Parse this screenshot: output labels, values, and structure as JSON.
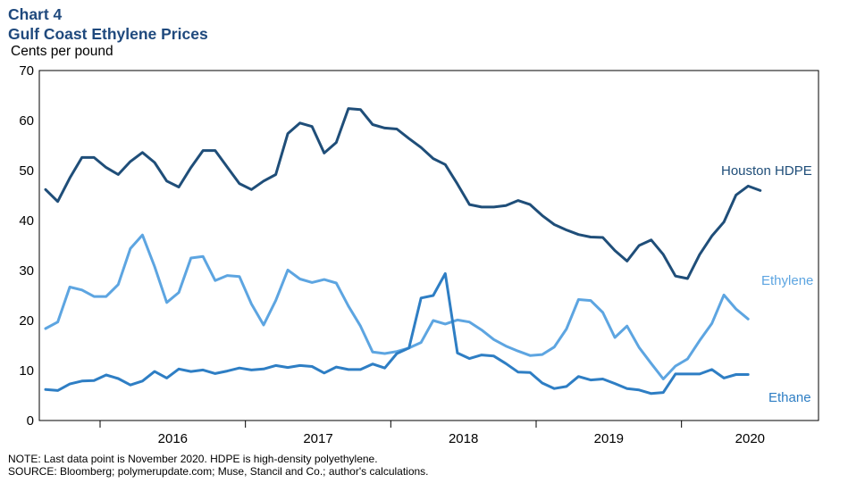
{
  "chart_data": {
    "type": "line",
    "chart_label": "Chart 4",
    "title": "Gulf Coast Ethylene Prices",
    "ylabel": "Cents per pound",
    "xlabel": "",
    "ylim": [
      0,
      70
    ],
    "yticks": [
      "0",
      "10",
      "20",
      "30",
      "40",
      "50",
      "60",
      "70"
    ],
    "xticks": [
      "2016",
      "2017",
      "2018",
      "2019",
      "2020"
    ],
    "x_start": "2015-08",
    "x_end": "2020-11",
    "series": [
      {
        "name": "Houston HDPE",
        "color": "#1f4e79",
        "values": [
          46.2,
          43.8,
          48.5,
          52.6,
          52.6,
          50.6,
          49.2,
          51.8,
          53.6,
          51.6,
          47.9,
          46.7,
          50.6,
          54.0,
          54.0,
          50.7,
          47.4,
          46.2,
          47.9,
          49.2,
          57.4,
          59.5,
          58.8,
          53.5,
          55.6,
          62.4,
          62.2,
          59.2,
          58.5,
          58.3,
          56.4,
          54.6,
          52.4,
          51.2,
          47.3,
          43.2,
          42.7,
          42.7,
          43.0,
          44.0,
          43.2,
          41.0,
          39.2,
          38.1,
          37.2,
          36.7,
          36.6,
          34.0,
          31.9,
          35.0,
          36.1,
          33.2,
          28.9,
          28.4,
          33.2,
          36.9,
          39.7,
          45.1,
          46.9,
          46.0
        ]
      },
      {
        "name": "Ethylene",
        "color": "#5da5e1",
        "values": [
          18.4,
          19.7,
          26.7,
          26.1,
          24.8,
          24.8,
          27.2,
          34.4,
          37.1,
          30.8,
          23.6,
          25.6,
          32.5,
          32.8,
          28.0,
          29.0,
          28.8,
          23.3,
          19.1,
          24.0,
          30.1,
          28.3,
          27.6,
          28.2,
          27.5,
          22.9,
          18.9,
          13.7,
          13.4,
          13.8,
          14.5,
          15.6,
          20.0,
          19.3,
          20.1,
          19.7,
          18.1,
          16.2,
          14.9,
          13.9,
          13.0,
          13.2,
          14.7,
          18.3,
          24.2,
          24.0,
          21.6,
          16.6,
          18.9,
          14.6,
          11.4,
          8.3,
          10.9,
          12.3,
          16.0,
          19.4,
          25.1,
          22.3,
          20.3
        ]
      },
      {
        "name": "Ethane",
        "color": "#2e7ec4",
        "values": [
          6.2,
          6.0,
          7.3,
          7.9,
          8.0,
          9.1,
          8.4,
          7.1,
          7.9,
          9.8,
          8.5,
          10.3,
          9.8,
          10.1,
          9.4,
          9.9,
          10.5,
          10.1,
          10.3,
          11.0,
          10.6,
          11.0,
          10.8,
          9.5,
          10.7,
          10.2,
          10.2,
          11.3,
          10.5,
          13.4,
          14.5,
          24.5,
          25.0,
          29.4,
          13.5,
          12.4,
          13.1,
          12.9,
          11.4,
          9.7,
          9.6,
          7.5,
          6.4,
          6.8,
          8.8,
          8.1,
          8.3,
          7.4,
          6.4,
          6.1,
          5.4,
          5.6,
          9.3,
          9.3,
          9.3,
          10.2,
          8.5,
          9.2,
          9.2
        ]
      }
    ],
    "series_labels": [
      "Houston HDPE",
      "Ethylene",
      "Ethane"
    ],
    "note": "NOTE: Last data point is November 2020. HDPE is high-density polyethylene.",
    "source": "SOURCE: Bloomberg; polymerupdate.com; Muse, Stancil and Co.; author's calculations."
  }
}
